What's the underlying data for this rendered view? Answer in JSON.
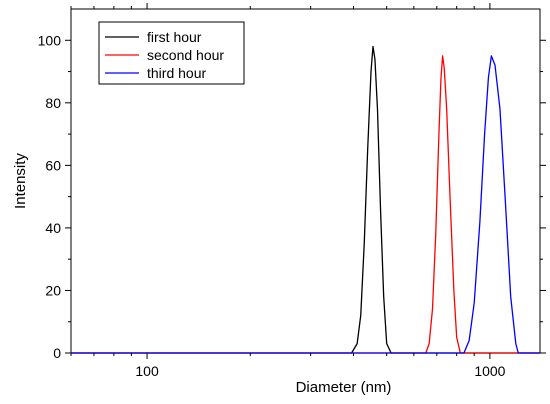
{
  "chart_data": {
    "type": "line",
    "xlabel": "Diameter (nm)",
    "ylabel": "Intensity",
    "x_scale": "log",
    "xlim": [
      60,
      1400
    ],
    "ylim": [
      0,
      110
    ],
    "x_ticks": [
      100,
      1000
    ],
    "x_tick_labels": [
      "100",
      "1000"
    ],
    "y_ticks": [
      0,
      20,
      40,
      60,
      80,
      100
    ],
    "y_tick_labels": [
      "0",
      "20",
      "40",
      "60",
      "80",
      "100"
    ],
    "grid": false,
    "legend_position": "top-left",
    "baseline_start": 60,
    "series": [
      {
        "name": "first hour",
        "color": "#000000",
        "x": [
          395,
          410,
          420,
          430,
          440,
          450,
          456,
          462,
          470,
          480,
          490,
          500,
          515
        ],
        "y": [
          0,
          3,
          12,
          35,
          65,
          90,
          98,
          94,
          78,
          45,
          18,
          3,
          0
        ]
      },
      {
        "name": "second hour",
        "color": "#ff0000",
        "x": [
          650,
          665,
          680,
          695,
          710,
          720,
          728,
          736,
          748,
          765,
          785,
          800,
          820
        ],
        "y": [
          0,
          3,
          14,
          38,
          70,
          88,
          95,
          91,
          78,
          50,
          20,
          5,
          0
        ]
      },
      {
        "name": "third hour",
        "color": "#0000ff",
        "x": [
          840,
          870,
          900,
          935,
          965,
          990,
          1010,
          1035,
          1070,
          1110,
          1150,
          1190,
          1210
        ],
        "y": [
          0,
          4,
          16,
          42,
          70,
          88,
          95,
          92,
          78,
          48,
          18,
          3,
          0
        ]
      }
    ]
  }
}
